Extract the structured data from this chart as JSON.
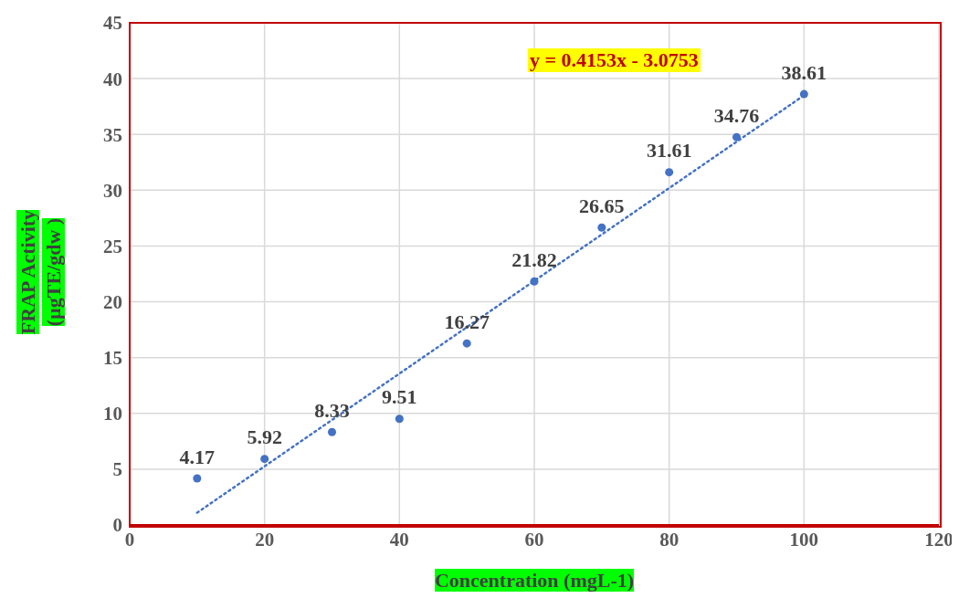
{
  "chart_data": {
    "type": "scatter",
    "xlabel": "Concentration (mgL-1)",
    "ylabel": "FRAP Activity (µgTE/gdw )",
    "annotations": [
      "y = 0.4153x - 3.0753"
    ],
    "x": [
      10,
      20,
      30,
      40,
      50,
      60,
      70,
      80,
      90,
      100
    ],
    "series": [
      {
        "color": "#4472c4",
        "marker": "circle",
        "values": [
          4.17,
          5.92,
          8.33,
          9.51,
          16.27,
          21.82,
          26.65,
          31.61,
          34.76,
          38.61
        ],
        "value_labels": [
          "4.17",
          "5.92",
          "8.33",
          "9.51",
          "16.27",
          "21.82",
          "26.65",
          "31.61",
          "34.76",
          "38.61"
        ]
      },
      {
        "type": "line",
        "x": [
          10,
          100
        ],
        "values": [
          1.1,
          38.5
        ],
        "color": "#4472c4",
        "line_style": "dotted",
        "marker": "none"
      }
    ],
    "grid": true,
    "xlim": [
      0,
      120
    ],
    "xticks": [
      0,
      20,
      40,
      60,
      80,
      100,
      120
    ],
    "ylim": [
      0,
      45
    ],
    "yticks": [
      0,
      5,
      10,
      15,
      20,
      25,
      30,
      35,
      40,
      45
    ]
  }
}
